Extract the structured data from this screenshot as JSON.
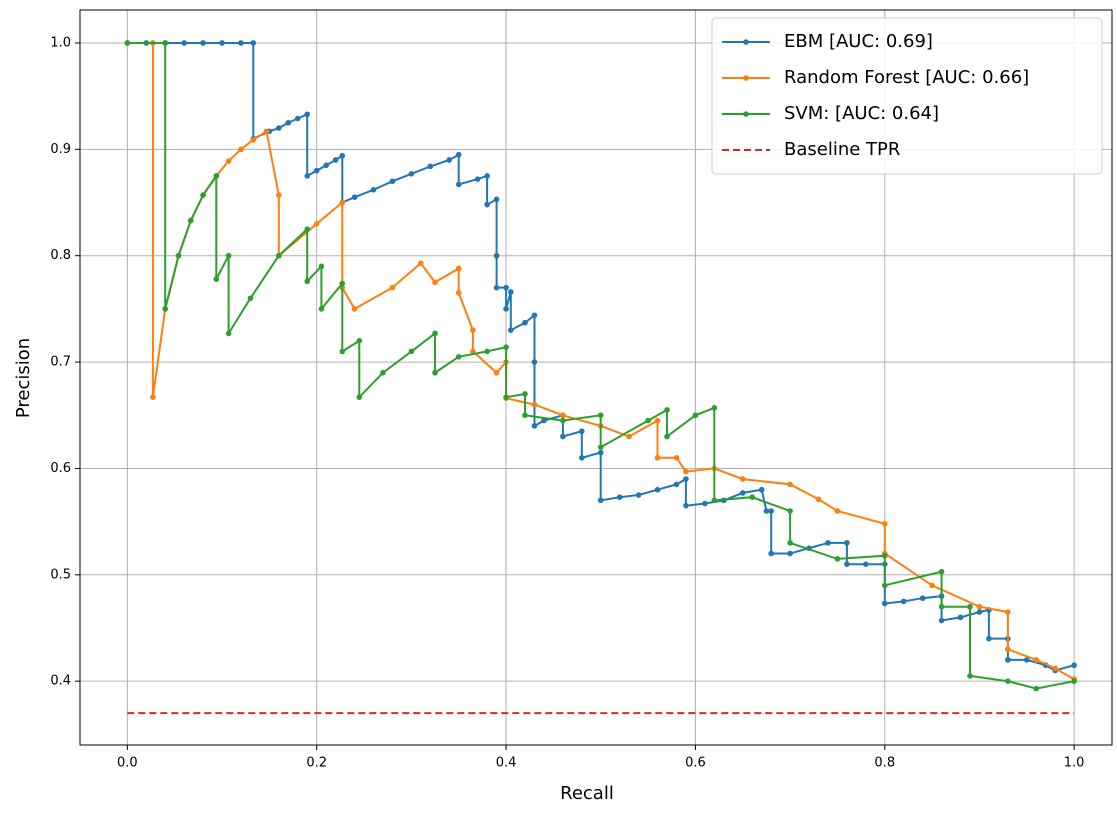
{
  "chart_data": {
    "type": "line",
    "xlabel": "Recall",
    "ylabel": "Precision",
    "grid": true,
    "legend": "upper right",
    "xlim": [
      -0.05,
      1.04
    ],
    "ylim": [
      0.34,
      1.031
    ],
    "xticks": [
      {
        "value": 0,
        "label": "0.0"
      },
      0.2,
      0.4,
      0.6,
      0.8,
      {
        "value": 1,
        "label": "1.0"
      }
    ],
    "yticks": [
      0.4,
      0.5,
      0.6,
      0.7,
      0.8,
      0.9,
      {
        "value": 1,
        "label": "1.0"
      }
    ],
    "series": [
      {
        "name": "EBM [AUC: 0.69]",
        "color": "#1f77b4",
        "markers": true,
        "x": [
          0,
          0.02,
          0.04,
          0.06,
          0.08,
          0.1,
          0.12,
          0.133,
          0.133,
          0.15,
          0.16,
          0.17,
          0.18,
          0.19,
          0.19,
          0.2,
          0.21,
          0.22,
          0.227,
          0.227,
          0.24,
          0.26,
          0.28,
          0.3,
          0.32,
          0.34,
          0.35,
          0.35,
          0.37,
          0.38,
          0.38,
          0.39,
          0.39,
          0.39,
          0.4,
          0.4,
          0.405,
          0.405,
          0.42,
          0.43,
          0.43,
          0.43,
          0.44,
          0.46,
          0.46,
          0.48,
          0.48,
          0.5,
          0.5,
          0.52,
          0.54,
          0.56,
          0.58,
          0.59,
          0.59,
          0.61,
          0.63,
          0.65,
          0.67,
          0.675,
          0.68,
          0.68,
          0.7,
          0.72,
          0.74,
          0.76,
          0.76,
          0.78,
          0.8,
          0.8,
          0.82,
          0.84,
          0.86,
          0.86,
          0.88,
          0.9,
          0.91,
          0.91,
          0.93,
          0.93,
          0.95,
          0.97,
          0.98,
          1.0
        ],
        "values": [
          1,
          1,
          1,
          1,
          1,
          1,
          1,
          1,
          0.91,
          0.917,
          0.92,
          0.925,
          0.929,
          0.933,
          0.875,
          0.88,
          0.885,
          0.89,
          0.894,
          0.85,
          0.855,
          0.862,
          0.87,
          0.877,
          0.884,
          0.89,
          0.895,
          0.867,
          0.872,
          0.875,
          0.848,
          0.853,
          0.8,
          0.77,
          0.77,
          0.75,
          0.766,
          0.73,
          0.737,
          0.744,
          0.7,
          0.64,
          0.645,
          0.65,
          0.63,
          0.635,
          0.61,
          0.615,
          0.57,
          0.573,
          0.575,
          0.58,
          0.585,
          0.59,
          0.565,
          0.567,
          0.57,
          0.577,
          0.58,
          0.56,
          0.56,
          0.52,
          0.52,
          0.525,
          0.53,
          0.53,
          0.51,
          0.51,
          0.51,
          0.473,
          0.475,
          0.478,
          0.48,
          0.457,
          0.46,
          0.465,
          0.467,
          0.44,
          0.44,
          0.42,
          0.42,
          0.415,
          0.41,
          0.415
        ]
      },
      {
        "name": "Random Forest [AUC: 0.66]",
        "color": "#ff7f0e",
        "markers": true,
        "x": [
          0,
          0.027,
          0.027,
          0.04,
          0.054,
          0.067,
          0.08,
          0.094,
          0.107,
          0.12,
          0.133,
          0.147,
          0.16,
          0.16,
          0.2,
          0.227,
          0.227,
          0.24,
          0.28,
          0.31,
          0.325,
          0.35,
          0.35,
          0.365,
          0.365,
          0.39,
          0.4,
          0.4,
          0.43,
          0.46,
          0.5,
          0.53,
          0.56,
          0.56,
          0.58,
          0.59,
          0.62,
          0.65,
          0.7,
          0.73,
          0.75,
          0.8,
          0.8,
          0.85,
          0.9,
          0.93,
          0.93,
          0.96,
          0.98,
          1.0
        ],
        "values": [
          1,
          1,
          0.667,
          0.75,
          0.8,
          0.833,
          0.857,
          0.875,
          0.889,
          0.9,
          0.909,
          0.917,
          0.857,
          0.8,
          0.83,
          0.85,
          0.77,
          0.75,
          0.77,
          0.793,
          0.775,
          0.788,
          0.765,
          0.73,
          0.71,
          0.69,
          0.7,
          0.666,
          0.66,
          0.65,
          0.64,
          0.63,
          0.645,
          0.61,
          0.61,
          0.597,
          0.6,
          0.59,
          0.585,
          0.571,
          0.56,
          0.548,
          0.52,
          0.49,
          0.47,
          0.465,
          0.43,
          0.42,
          0.412,
          0.402
        ]
      },
      {
        "name": "SVM: [AUC: 0.64]",
        "color": "#2ca02c",
        "markers": true,
        "x": [
          0,
          0.04,
          0.04,
          0.054,
          0.067,
          0.08,
          0.094,
          0.094,
          0.107,
          0.107,
          0.13,
          0.16,
          0.19,
          0.19,
          0.205,
          0.205,
          0.227,
          0.227,
          0.245,
          0.245,
          0.27,
          0.3,
          0.325,
          0.325,
          0.35,
          0.38,
          0.4,
          0.4,
          0.42,
          0.42,
          0.46,
          0.5,
          0.5,
          0.55,
          0.57,
          0.57,
          0.6,
          0.62,
          0.62,
          0.66,
          0.7,
          0.7,
          0.75,
          0.8,
          0.8,
          0.86,
          0.86,
          0.89,
          0.89,
          0.93,
          0.96,
          1.0
        ],
        "values": [
          1,
          1,
          0.75,
          0.8,
          0.833,
          0.857,
          0.875,
          0.778,
          0.8,
          0.727,
          0.76,
          0.8,
          0.825,
          0.776,
          0.79,
          0.75,
          0.774,
          0.71,
          0.72,
          0.667,
          0.69,
          0.71,
          0.727,
          0.69,
          0.705,
          0.71,
          0.714,
          0.667,
          0.67,
          0.65,
          0.645,
          0.65,
          0.62,
          0.645,
          0.655,
          0.63,
          0.65,
          0.657,
          0.57,
          0.573,
          0.56,
          0.53,
          0.515,
          0.518,
          0.49,
          0.503,
          0.47,
          0.47,
          0.405,
          0.4,
          0.393,
          0.4
        ]
      },
      {
        "name": "Baseline TPR",
        "color": "#d62728",
        "markers": false,
        "dashed": true,
        "x": [
          0,
          1
        ],
        "values": [
          0.37,
          0.37
        ]
      }
    ]
  }
}
